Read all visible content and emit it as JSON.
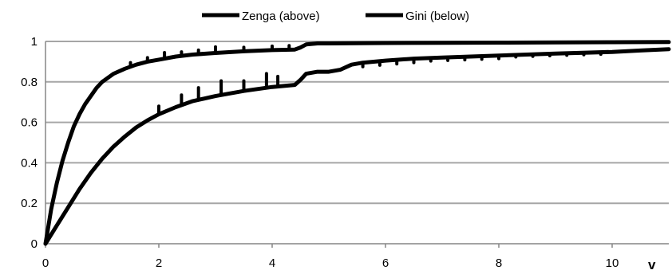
{
  "chart_data": {
    "type": "line",
    "title": "",
    "xlabel": "v",
    "ylabel": "",
    "xlim": [
      0,
      11
    ],
    "ylim": [
      0,
      1
    ],
    "xticks": [
      0,
      2,
      4,
      6,
      8,
      10
    ],
    "yticks": [
      0,
      0.2,
      0.4,
      0.6,
      0.8,
      1
    ],
    "grid": "horizontal",
    "legend_position": "top",
    "line_color": "#000000",
    "grid_color": "#a6a6a6",
    "series": [
      {
        "name": "Zenga (above)",
        "x": [
          0,
          0.1,
          0.2,
          0.3,
          0.4,
          0.5,
          0.6,
          0.7,
          0.8,
          0.9,
          1.0,
          1.2,
          1.4,
          1.6,
          1.8,
          2.0,
          2.3,
          2.6,
          3.0,
          3.5,
          4.0,
          4.4,
          4.5,
          4.6,
          4.8,
          5.0,
          6.0,
          7.0,
          8.0,
          9.0,
          10.0,
          11.0
        ],
        "y": [
          0,
          0.17,
          0.3,
          0.41,
          0.5,
          0.58,
          0.64,
          0.69,
          0.73,
          0.77,
          0.8,
          0.84,
          0.865,
          0.885,
          0.9,
          0.91,
          0.925,
          0.935,
          0.943,
          0.951,
          0.957,
          0.96,
          0.97,
          0.985,
          0.99,
          0.99,
          0.992,
          0.993,
          0.994,
          0.995,
          0.996,
          0.997
        ]
      },
      {
        "name": "Gini (below)",
        "x": [
          0,
          0.2,
          0.4,
          0.6,
          0.8,
          1.0,
          1.2,
          1.4,
          1.6,
          1.8,
          2.0,
          2.3,
          2.6,
          3.0,
          3.5,
          4.0,
          4.4,
          4.5,
          4.6,
          4.8,
          5.0,
          5.2,
          5.4,
          5.6,
          6.0,
          6.5,
          7.0,
          8.0,
          9.0,
          10.0,
          10.5,
          11.0
        ],
        "y": [
          0,
          0.09,
          0.18,
          0.27,
          0.35,
          0.42,
          0.48,
          0.53,
          0.575,
          0.61,
          0.64,
          0.675,
          0.705,
          0.73,
          0.755,
          0.775,
          0.785,
          0.81,
          0.84,
          0.85,
          0.85,
          0.86,
          0.885,
          0.895,
          0.905,
          0.915,
          0.92,
          0.93,
          0.94,
          0.948,
          0.955,
          0.962
        ]
      }
    ],
    "spikes": [
      {
        "series": "Zenga (above)",
        "x": [
          1.5,
          1.8,
          2.1,
          2.4,
          2.7,
          3.0,
          3.5,
          4.0,
          4.3
        ],
        "lift": [
          0.02,
          0.02,
          0.03,
          0.02,
          0.02,
          0.03,
          0.02,
          0.02,
          0.02
        ]
      },
      {
        "series": "Gini (below)",
        "x": [
          2.0,
          2.4,
          2.7,
          3.1,
          3.5,
          3.9,
          4.1
        ],
        "lift": [
          0.04,
          0.05,
          0.06,
          0.07,
          0.05,
          0.07,
          0.05
        ]
      },
      {
        "series": "Gini (below)",
        "x": [
          5.6,
          5.9,
          6.2,
          6.5,
          6.8,
          7.1,
          7.4,
          7.7,
          8.0,
          8.3,
          8.6,
          8.9,
          9.2,
          9.5,
          9.8
        ],
        "lift": [
          -0.02,
          -0.02,
          -0.02,
          -0.02,
          -0.015,
          -0.015,
          -0.015,
          -0.015,
          -0.015,
          -0.01,
          -0.01,
          -0.01,
          -0.01,
          -0.01,
          -0.01
        ]
      }
    ]
  }
}
